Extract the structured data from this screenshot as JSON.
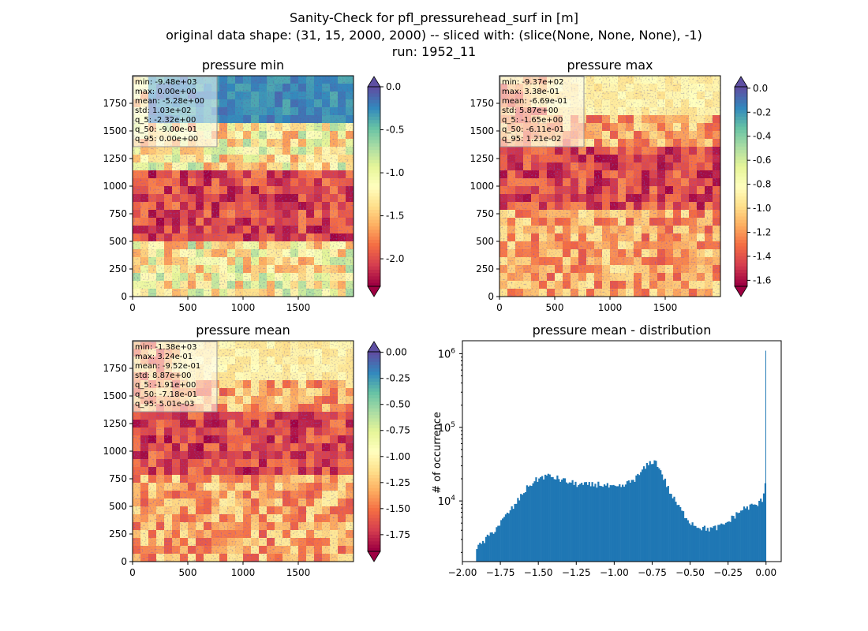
{
  "figure": {
    "suptitle_lines": [
      "Sanity-Check for pfl_pressurehead_surf in [m]",
      "original data shape: (31, 15, 2000, 2000) -- sliced with: (slice(None, None, None), -1)",
      "run: 1952_11"
    ]
  },
  "colors": {
    "hist_bar": "#1f77b4",
    "spectral": [
      "#9e0142",
      "#d53e4f",
      "#f46d43",
      "#fdae61",
      "#fee08b",
      "#ffffbf",
      "#e6f598",
      "#abdda4",
      "#66c2a5",
      "#3288bd",
      "#5e4fa2"
    ]
  },
  "chart_data": [
    {
      "type": "heatmap",
      "title": "pressure min",
      "xticks": [
        "0",
        "500",
        "1000",
        "1500"
      ],
      "yticks": [
        "0",
        "250",
        "500",
        "750",
        "1000",
        "1250",
        "1500",
        "1750"
      ],
      "xlim": [
        0,
        2000
      ],
      "ylim": [
        0,
        2000
      ],
      "colorbar": {
        "ticks": [
          "0.0",
          "-0.5",
          "-1.0",
          "-1.5",
          "-2.0"
        ],
        "range": [
          -2.32,
          0.0
        ],
        "extend": "both"
      },
      "stats": [
        "min: -9.48e+03",
        "max: 0.00e+00",
        "mean: -5.28e+00",
        "std: 1.03e+02",
        "q_5: -2.32e+00",
        "q_50: -9.00e-01",
        "q_95: 0.00e+00"
      ]
    },
    {
      "type": "heatmap",
      "title": "pressure max",
      "xticks": [
        "0",
        "500",
        "1000",
        "1500"
      ],
      "yticks": [
        "0",
        "250",
        "500",
        "750",
        "1000",
        "1250",
        "1500",
        "1750"
      ],
      "xlim": [
        0,
        2000
      ],
      "ylim": [
        0,
        2000
      ],
      "colorbar": {
        "ticks": [
          "0.0",
          "-0.2",
          "-0.4",
          "-0.6",
          "-0.8",
          "-1.0",
          "-1.2",
          "-1.4",
          "-1.6"
        ],
        "range": [
          -1.65,
          0.0121
        ],
        "extend": "both"
      },
      "stats": [
        "min: -9.37e+02",
        "max: 3.38e-01",
        "mean: -6.69e-01",
        "std: 5.87e+00",
        "q_5: -1.65e+00",
        "q_50: -6.11e-01",
        "q_95: 1.21e-02"
      ]
    },
    {
      "type": "heatmap",
      "title": "pressure mean",
      "xticks": [
        "0",
        "500",
        "1000",
        "1500"
      ],
      "yticks": [
        "0",
        "250",
        "500",
        "750",
        "1000",
        "1250",
        "1500",
        "1750"
      ],
      "xlim": [
        0,
        2000
      ],
      "ylim": [
        0,
        2000
      ],
      "colorbar": {
        "ticks": [
          "0.00",
          "-0.25",
          "-0.50",
          "-0.75",
          "-1.00",
          "-1.25",
          "-1.50",
          "-1.75"
        ],
        "range": [
          -1.91,
          0.00501
        ],
        "extend": "both"
      },
      "stats": [
        "min: -1.38e+03",
        "max: 3.24e-01",
        "mean: -9.52e-01",
        "std: 8.87e+00",
        "q_5: -1.91e+00",
        "q_50: -7.18e-01",
        "q_95: 5.01e-03"
      ]
    },
    {
      "type": "bar",
      "title": "pressure mean - distribution",
      "ylabel": "# of occurrence",
      "xlabel": "",
      "yscale": "log",
      "xlim": [
        -2.0,
        0.1
      ],
      "xticks": [
        "-2.00",
        "-1.75",
        "-1.50",
        "-1.25",
        "-1.00",
        "-0.75",
        "-0.50",
        "-0.25",
        "0.00"
      ],
      "ytick_values": [
        10000,
        100000,
        1000000
      ],
      "ytick_exponents": [
        "4",
        "5",
        "6"
      ],
      "anchors": [
        [
          -1.91,
          2200
        ],
        [
          -1.86,
          2800
        ],
        [
          -1.8,
          3800
        ],
        [
          -1.75,
          5000
        ],
        [
          -1.7,
          6800
        ],
        [
          -1.65,
          9000
        ],
        [
          -1.6,
          13000
        ],
        [
          -1.55,
          17000
        ],
        [
          -1.5,
          20000
        ],
        [
          -1.45,
          22000
        ],
        [
          -1.4,
          21000
        ],
        [
          -1.35,
          19500
        ],
        [
          -1.3,
          18000
        ],
        [
          -1.25,
          17000
        ],
        [
          -1.2,
          16500
        ],
        [
          -1.15,
          16500
        ],
        [
          -1.1,
          17000
        ],
        [
          -1.05,
          16000
        ],
        [
          -1.0,
          15000
        ],
        [
          -0.95,
          15500
        ],
        [
          -0.9,
          18000
        ],
        [
          -0.85,
          21000
        ],
        [
          -0.8,
          28000
        ],
        [
          -0.75,
          35000
        ],
        [
          -0.72,
          33000
        ],
        [
          -0.68,
          22000
        ],
        [
          -0.64,
          14000
        ],
        [
          -0.6,
          10000
        ],
        [
          -0.55,
          7000
        ],
        [
          -0.5,
          5200
        ],
        [
          -0.45,
          4500
        ],
        [
          -0.4,
          4200
        ],
        [
          -0.35,
          4200
        ],
        [
          -0.3,
          4500
        ],
        [
          -0.25,
          5200
        ],
        [
          -0.2,
          6500
        ],
        [
          -0.15,
          7800
        ],
        [
          -0.1,
          8500
        ],
        [
          -0.05,
          9000
        ],
        [
          -0.02,
          11000
        ],
        [
          -0.005,
          18000
        ],
        [
          0.0,
          1100000
        ]
      ]
    }
  ]
}
